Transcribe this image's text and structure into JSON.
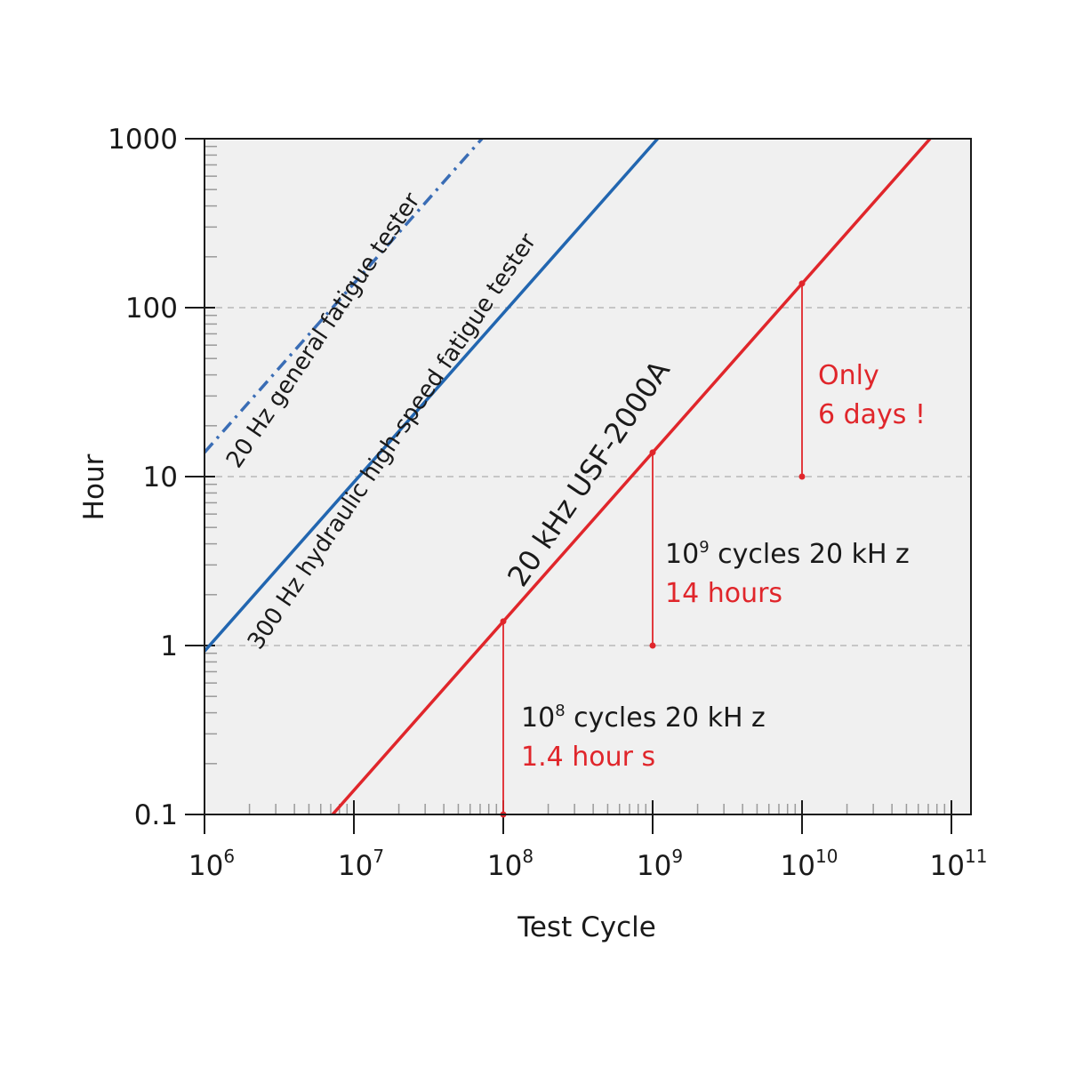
{
  "chart_data": {
    "type": "line",
    "title": "",
    "xlabel": "Test Cycle",
    "ylabel": "Hour",
    "x_scale": "log",
    "y_scale": "log",
    "xlim": [
      1000000,
      100000000000
    ],
    "ylim": [
      0.1,
      1000
    ],
    "x_ticks": [
      {
        "value": 1000000,
        "base": "10",
        "exp": "6"
      },
      {
        "value": 10000000,
        "base": "10",
        "exp": "7"
      },
      {
        "value": 100000000,
        "base": "10",
        "exp": "8"
      },
      {
        "value": 1000000000,
        "base": "10",
        "exp": "9"
      },
      {
        "value": 10000000000,
        "base": "10",
        "exp": "10"
      },
      {
        "value": 100000000000,
        "base": "10",
        "exp": "11"
      }
    ],
    "y_ticks": [
      {
        "value": 0.1,
        "label": "0.1"
      },
      {
        "value": 1,
        "label": "1"
      },
      {
        "value": 10,
        "label": "10"
      },
      {
        "value": 100,
        "label": "100"
      },
      {
        "value": 1000,
        "label": "1000"
      }
    ],
    "grid": {
      "y_major_dashed": [
        1,
        10,
        100
      ]
    },
    "colors": {
      "red": "#e0262b",
      "blue": "#2266b0",
      "plot_bg": "#f0f0f0"
    },
    "series": [
      {
        "name": "20 Hz general fatigue tester",
        "style": "dash-dot",
        "color": "#3a6db5",
        "x": [
          1000000,
          72000000
        ],
        "y": [
          13.9,
          1000
        ]
      },
      {
        "name": "300 Hz hydraulic high-speed fatigue tester",
        "style": "solid",
        "color": "#2266b0",
        "x": [
          1000000,
          1080000000
        ],
        "y": [
          0.926,
          1000
        ]
      },
      {
        "name": "20 kHz USF-2000A",
        "style": "solid",
        "color": "#e0262b",
        "x": [
          7200000,
          72000000000
        ],
        "y": [
          0.1,
          1000
        ]
      }
    ],
    "markers": [
      {
        "x": 100000000,
        "y_from": 0.1,
        "y_to": 1.39
      },
      {
        "x": 1000000000,
        "y_from": 1,
        "y_to": 13.9
      },
      {
        "x": 10000000000,
        "y_from": 10,
        "y_to": 139
      }
    ],
    "annotations": [
      {
        "base": "10",
        "exp": "8",
        "text": " cycles 20 kH z",
        "value_text": "1.4 hour s"
      },
      {
        "base": "10",
        "exp": "9",
        "text": " cycles 20 kH z",
        "value_text": "14 hours"
      },
      {
        "line1": "Only",
        "line2": "6 days !"
      }
    ]
  }
}
